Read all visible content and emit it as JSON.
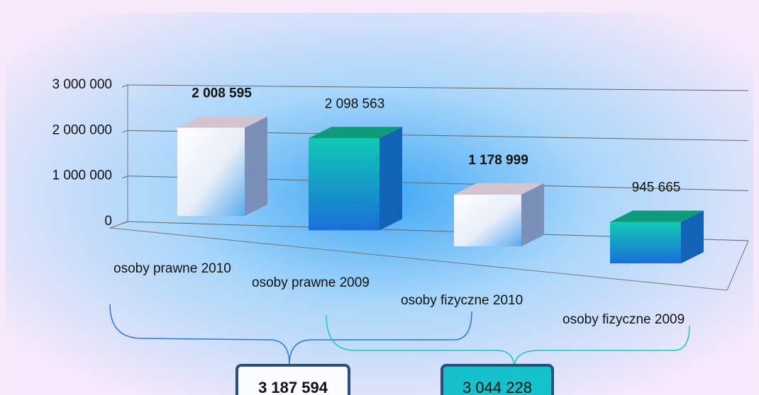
{
  "chart_data": {
    "type": "bar3d",
    "categories": [
      "osoby prawne 2010",
      "osoby prawne 2009",
      "osoby fizyczne 2010",
      "osoby fizyczne 2009"
    ],
    "values": [
      2008595,
      2098563,
      1178999,
      945665
    ],
    "value_labels": [
      "2 008 595",
      "2 098 563",
      "1 178 999",
      "945 665"
    ],
    "label_bold": [
      true,
      false,
      true,
      false
    ],
    "colors": [
      "#f4f6fb",
      "#11c9b4",
      "#f4f6fb",
      "#11c9b4"
    ],
    "ylim": [
      0,
      3000000
    ],
    "yticks": [
      0,
      {
        "value": 1000000,
        "label": "1 000 000"
      },
      {
        "value": 2000000,
        "label": "2 000 000"
      },
      {
        "value": 3000000,
        "label": "3 000 000"
      }
    ],
    "grid": true,
    "annotations": [
      "3 187 594",
      "3 044 228"
    ]
  }
}
